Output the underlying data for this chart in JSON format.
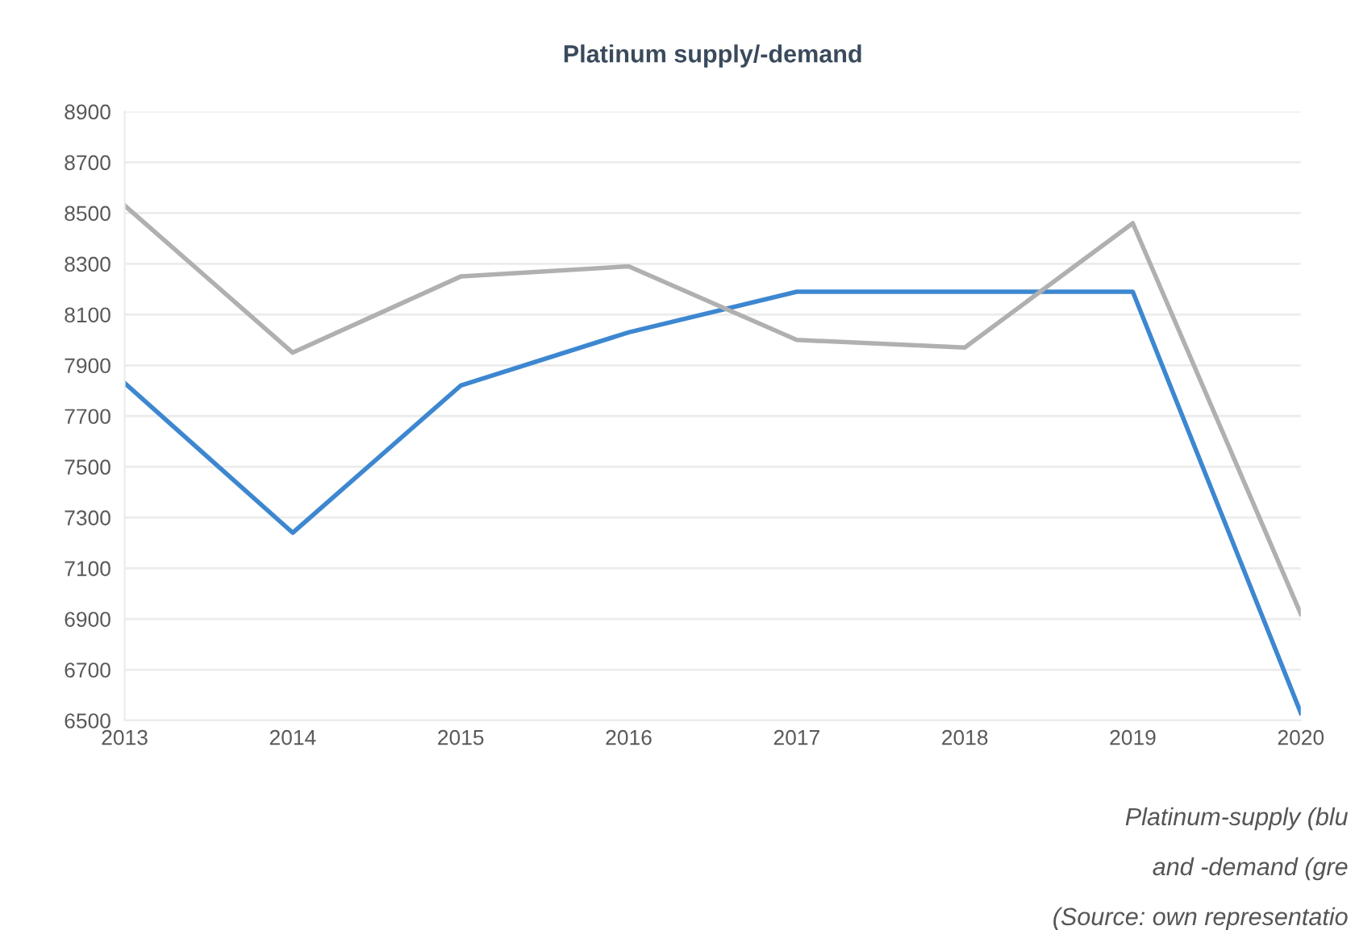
{
  "chart_data": {
    "type": "line",
    "title": "Platinum supply/-demand",
    "x": [
      2013,
      2014,
      2015,
      2016,
      2017,
      2018,
      2019,
      2020
    ],
    "series": [
      {
        "color": "#3d87d0",
        "values": [
          7830,
          7240,
          7820,
          8030,
          8190,
          8190,
          8190,
          6530
        ]
      },
      {
        "color": "#b0b0b0",
        "values": [
          8530,
          7950,
          8250,
          8290,
          8000,
          7970,
          8460,
          6920
        ]
      }
    ],
    "xlim": [
      2013,
      2020
    ],
    "xticks": [
      2013,
      2014,
      2015,
      2016,
      2017,
      2018,
      2019,
      2020
    ],
    "ylim": [
      6500,
      8900
    ],
    "yticks": [
      6500,
      6700,
      6900,
      7100,
      7300,
      7500,
      7700,
      7900,
      8100,
      8300,
      8500,
      8700,
      8900
    ],
    "grid": "y",
    "legend": false,
    "marker": "none",
    "line_style": "solid",
    "annotations": [
      "Platinum-supply (blu",
      "and -demand (gre",
      "(Source: own representatio"
    ]
  }
}
